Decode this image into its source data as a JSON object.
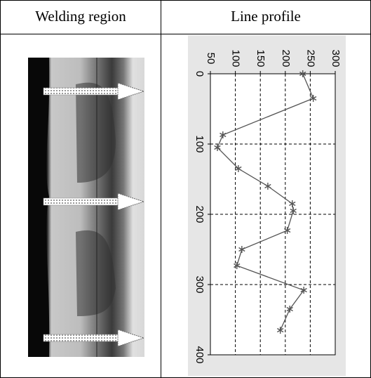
{
  "table": {
    "headers": [
      "Welding region",
      "Line profile"
    ]
  },
  "chart_data": {
    "type": "line",
    "x": [
      0,
      35,
      87,
      105,
      135,
      160,
      185,
      195,
      223,
      250,
      273,
      308,
      335,
      365
    ],
    "series": [
      {
        "color": "#555555",
        "values": [
          235,
          256,
          75,
          64,
          106,
          165,
          214,
          216,
          204,
          113,
          103,
          237,
          209,
          190
        ]
      }
    ],
    "xlim": [
      0,
      400
    ],
    "xticks": [
      0,
      100,
      200,
      300,
      400
    ],
    "ylim": [
      50,
      300
    ],
    "yticks": [
      50,
      100,
      150,
      200,
      250,
      300
    ],
    "grid": true
  }
}
